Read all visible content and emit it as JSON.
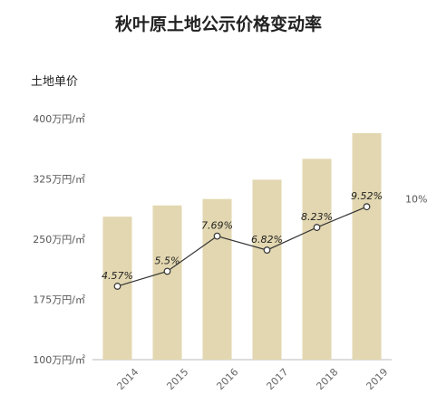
{
  "chart_data": {
    "type": "bar+line",
    "title": "秋叶原土地公示价格变动率",
    "ylabel": "土地单价",
    "categories": [
      "2014",
      "2015",
      "2016",
      "2017",
      "2018",
      "2019"
    ],
    "ylim": [
      100,
      400
    ],
    "y_ticks": [
      "400万円/㎡",
      "325万円/㎡",
      "250万円/㎡",
      "175万円/㎡",
      "100万円/㎡"
    ],
    "y_tick_values": [
      400,
      325,
      250,
      175,
      100
    ],
    "bar_values": [
      278,
      292,
      300,
      324,
      350,
      382
    ],
    "line_values": [
      4.57,
      5.5,
      7.69,
      6.82,
      8.23,
      9.52
    ],
    "line_labels": [
      "4.57%",
      "5.5%",
      "7.69%",
      "6.82%",
      "8.23%",
      "9.52%"
    ],
    "right_ylim": [
      0,
      15
    ],
    "right_tick": "10%",
    "right_tick_value": 10,
    "bar_color": "#e2d7b0",
    "line_color": "#333333"
  }
}
